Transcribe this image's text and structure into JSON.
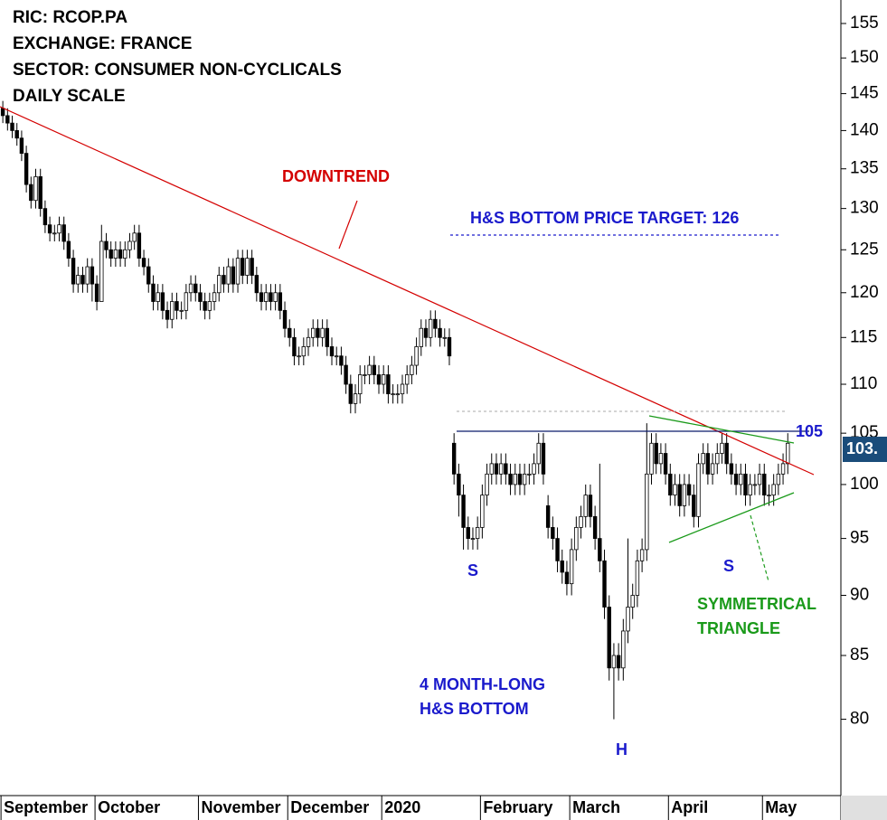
{
  "chart_data": {
    "type": "candlestick",
    "title_lines": [
      "RIC: RCOP.PA",
      "EXCHANGE: FRANCE",
      "SECTOR: CONSUMER NON-CYCLICALS",
      "DAILY SCALE"
    ],
    "annotations": [
      "DOWNTREND",
      "H&S BOTTOM PRICE TARGET: 126",
      "105",
      "S",
      "S",
      "H",
      "4 MONTH-LONG",
      "H&S BOTTOM",
      "SYMMETRICAL",
      "TRIANGLE"
    ],
    "last_price_label": "103.",
    "log_scale": true,
    "up_color": "#ffffff",
    "down_color": "#000000",
    "ylim": [
      74.4,
      158.5
    ],
    "yticks": [
      80,
      85,
      90,
      95,
      100,
      105,
      110,
      115,
      120,
      125,
      130,
      135,
      140,
      145,
      150,
      155
    ],
    "xlim": [
      -0.6,
      178.3
    ],
    "xticks": [
      {
        "value": 0,
        "label": "September"
      },
      {
        "value": 20,
        "label": "October"
      },
      {
        "value": 42,
        "label": "November"
      },
      {
        "value": 61,
        "label": "December"
      },
      {
        "value": 81,
        "label": "2020"
      },
      {
        "value": 102,
        "label": "February"
      },
      {
        "value": 121,
        "label": "March"
      },
      {
        "value": 142,
        "label": "April"
      },
      {
        "value": 162,
        "label": "May"
      }
    ],
    "open": [
      143,
      142,
      141,
      140,
      139,
      137,
      133,
      131,
      134,
      130,
      128,
      127,
      127,
      128,
      126,
      124,
      121,
      122,
      121,
      123,
      121,
      119,
      126,
      125,
      124,
      125,
      124,
      125,
      126,
      127,
      124,
      123,
      121,
      119,
      120,
      118,
      117,
      119,
      118,
      118,
      120,
      121,
      120,
      119,
      118,
      119,
      120,
      122,
      121,
      123,
      121,
      124,
      122,
      124,
      122,
      120,
      119,
      120,
      119,
      120,
      118,
      116,
      115,
      113,
      113,
      114,
      115,
      116,
      115,
      116,
      114,
      113,
      113,
      112,
      110,
      108,
      109,
      111,
      111,
      112,
      111,
      110,
      111,
      109,
      109,
      109,
      110,
      111,
      112,
      114,
      116,
      115,
      117,
      116,
      115,
      115,
      104,
      101,
      99,
      96,
      95,
      95,
      96,
      99,
      101,
      102,
      101,
      102,
      101,
      100,
      101,
      100,
      101,
      101,
      102,
      104,
      98,
      96,
      95,
      93,
      92,
      91,
      94,
      96,
      97,
      99,
      97,
      95,
      93,
      89,
      84,
      85,
      84,
      87,
      89,
      90,
      93,
      94,
      101,
      104,
      102,
      103,
      101,
      99,
      100,
      98,
      100,
      99,
      97,
      102,
      103,
      101,
      102,
      103,
      104,
      102,
      101,
      100,
      101,
      99,
      100,
      100,
      101,
      99,
      99,
      100,
      101,
      102
    ],
    "high": [
      144,
      143,
      142,
      141,
      140,
      138,
      134,
      135,
      135,
      131,
      129,
      128,
      129,
      129,
      127,
      125,
      123,
      123,
      124,
      124,
      122,
      128,
      127,
      126,
      126,
      126,
      126,
      127,
      128,
      128,
      125,
      124,
      122,
      121,
      121,
      119,
      120,
      120,
      119,
      121,
      122,
      122,
      121,
      120,
      120,
      121,
      123,
      123,
      124,
      124,
      125,
      125,
      125,
      125,
      123,
      121,
      121,
      121,
      121,
      121,
      119,
      117,
      116,
      114,
      115,
      116,
      117,
      117,
      117,
      117,
      115,
      114,
      114,
      113,
      111,
      110,
      112,
      112,
      113,
      113,
      112,
      112,
      112,
      110,
      110,
      111,
      112,
      113,
      115,
      117,
      117,
      118,
      118,
      117,
      116,
      116,
      105,
      102,
      100,
      97,
      96,
      97,
      100,
      102,
      103,
      103,
      103,
      103,
      102,
      102,
      102,
      102,
      102,
      103,
      105,
      105,
      99,
      97,
      96,
      94,
      93,
      95,
      97,
      98,
      100,
      100,
      98,
      102,
      94,
      90,
      86,
      86,
      88,
      95,
      91,
      94,
      95,
      106,
      105,
      105,
      104,
      104,
      102,
      101,
      101,
      101,
      101,
      100,
      103,
      104,
      104,
      103,
      104,
      105,
      105,
      103,
      102,
      102,
      102,
      101,
      101,
      102,
      102,
      100,
      101,
      102,
      103,
      105
    ],
    "low": [
      141,
      140,
      139,
      138,
      136,
      132,
      130,
      130,
      129,
      127,
      126,
      126,
      126,
      125,
      123,
      120,
      120,
      120,
      120,
      119,
      118,
      119,
      124,
      123,
      123,
      123,
      123,
      124,
      125,
      123,
      122,
      120,
      118,
      118,
      117,
      116,
      116,
      117,
      117,
      117,
      119,
      119,
      118,
      117,
      117,
      118,
      119,
      120,
      120,
      120,
      120,
      121,
      121,
      121,
      119,
      118,
      118,
      118,
      118,
      117,
      115,
      114,
      112,
      112,
      112,
      113,
      114,
      114,
      114,
      113,
      112,
      112,
      111,
      109,
      107,
      107,
      108,
      110,
      110,
      110,
      109,
      109,
      108,
      108,
      108,
      108,
      109,
      110,
      111,
      113,
      114,
      114,
      115,
      114,
      114,
      112,
      100,
      97,
      94,
      94,
      94,
      94,
      95,
      98,
      100,
      100,
      100,
      100,
      99,
      99,
      99,
      99,
      100,
      100,
      101,
      100,
      95,
      94,
      92,
      91,
      90,
      90,
      93,
      95,
      96,
      96,
      94,
      92,
      88,
      83,
      80,
      83,
      83,
      86,
      88,
      89,
      92,
      93,
      100,
      101,
      101,
      100,
      98,
      98,
      97,
      97,
      98,
      96,
      96,
      101,
      100,
      100,
      101,
      102,
      101,
      100,
      99,
      99,
      98,
      98,
      99,
      99,
      98,
      98,
      98,
      99,
      100,
      101
    ],
    "close": [
      142,
      141,
      140,
      139,
      137,
      133,
      131,
      134,
      130,
      128,
      127,
      127,
      128,
      126,
      124,
      121,
      122,
      121,
      123,
      121,
      119,
      126,
      125,
      124,
      125,
      124,
      125,
      126,
      127,
      124,
      123,
      121,
      119,
      120,
      118,
      117,
      119,
      118,
      118,
      120,
      121,
      120,
      119,
      118,
      119,
      120,
      122,
      121,
      123,
      121,
      124,
      122,
      124,
      122,
      120,
      119,
      120,
      119,
      120,
      118,
      116,
      115,
      113,
      113,
      114,
      115,
      116,
      115,
      116,
      114,
      113,
      113,
      112,
      110,
      108,
      109,
      111,
      111,
      112,
      111,
      110,
      111,
      109,
      109,
      109,
      110,
      111,
      112,
      114,
      116,
      115,
      117,
      116,
      115,
      115,
      113,
      101,
      99,
      96,
      95,
      95,
      96,
      99,
      101,
      102,
      101,
      102,
      101,
      100,
      101,
      100,
      101,
      101,
      102,
      104,
      101,
      96,
      95,
      93,
      92,
      91,
      94,
      96,
      97,
      99,
      97,
      95,
      93,
      89,
      84,
      85,
      84,
      87,
      89,
      90,
      93,
      94,
      101,
      104,
      102,
      103,
      101,
      99,
      100,
      98,
      100,
      99,
      97,
      102,
      103,
      101,
      102,
      103,
      104,
      102,
      101,
      100,
      101,
      99,
      100,
      100,
      101,
      99,
      99,
      100,
      101,
      102,
      104
    ]
  }
}
